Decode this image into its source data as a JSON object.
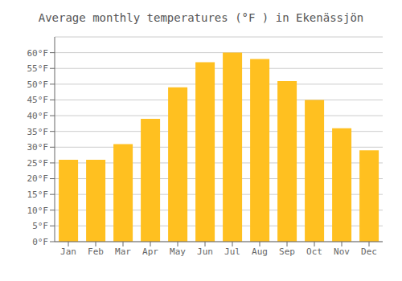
{
  "chart_data": {
    "type": "bar",
    "title": "Average monthly temperatures (°F ) in Ekenässjön",
    "categories": [
      "Jan",
      "Feb",
      "Mar",
      "Apr",
      "May",
      "Jun",
      "Jul",
      "Aug",
      "Sep",
      "Oct",
      "Nov",
      "Dec"
    ],
    "values": [
      26,
      26,
      31,
      39,
      49,
      57,
      60,
      58,
      51,
      45,
      36,
      29
    ],
    "color": "#FFC020",
    "ylim": [
      0,
      65
    ],
    "yticks": [
      {
        "value": 0,
        "label": "0°F"
      },
      {
        "value": 5,
        "label": "5°F"
      },
      {
        "value": 10,
        "label": "10°F"
      },
      {
        "value": 15,
        "label": "15°F"
      },
      {
        "value": 20,
        "label": "20°F"
      },
      {
        "value": 25,
        "label": "25°F"
      },
      {
        "value": 30,
        "label": "30°F"
      },
      {
        "value": 35,
        "label": "35°F"
      },
      {
        "value": 40,
        "label": "40°F"
      },
      {
        "value": 45,
        "label": "45°F"
      },
      {
        "value": 50,
        "label": "50°F"
      },
      {
        "value": 55,
        "label": "55°F"
      },
      {
        "value": 60,
        "label": "60°F"
      }
    ],
    "grid": true
  }
}
